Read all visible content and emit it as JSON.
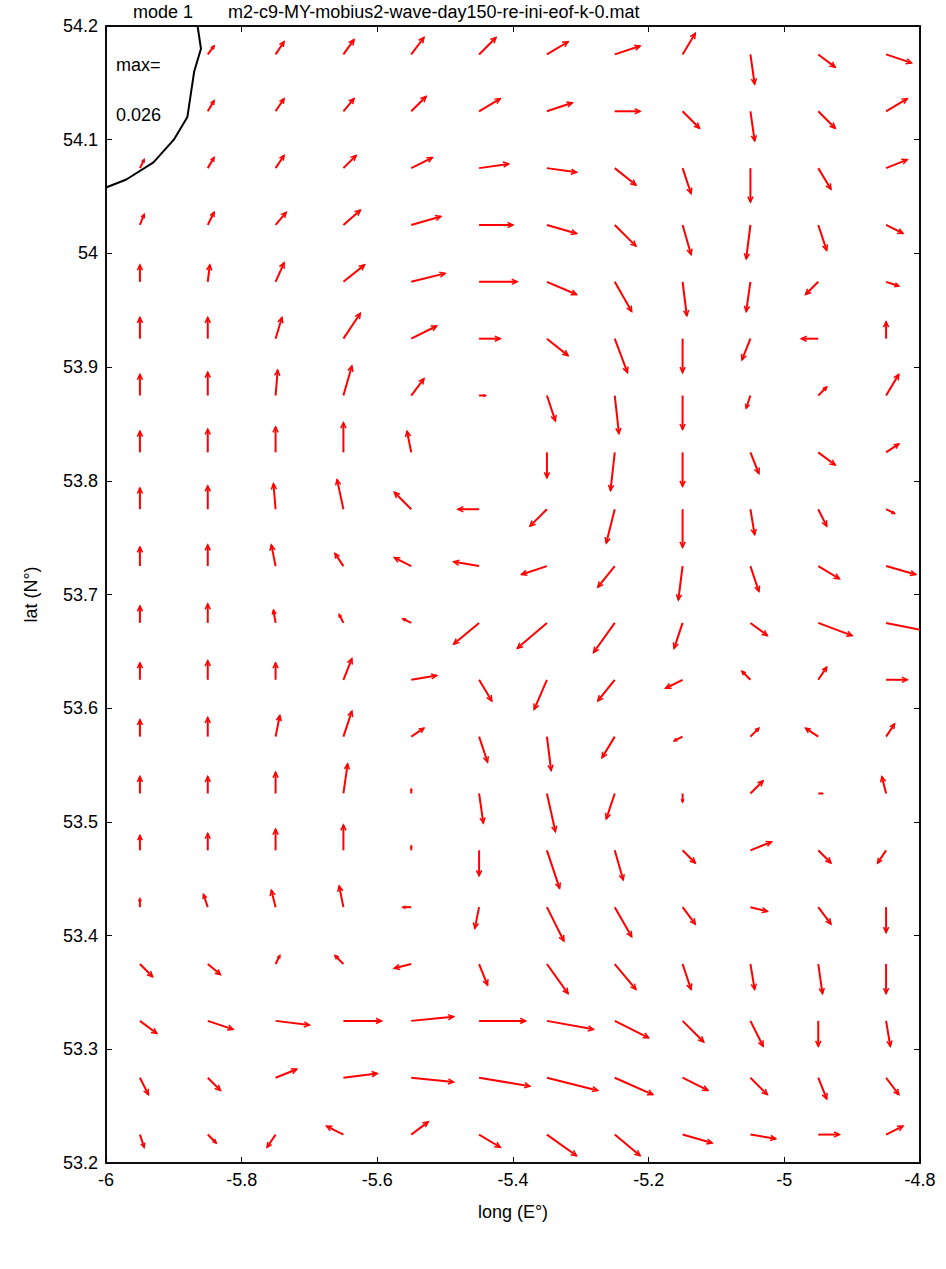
{
  "chart_data": {
    "type": "quiver",
    "title": "mode 1",
    "subtitle": "m2-c9-MY-mobius2-wave-day150-re-ini-eof-k-0.mat",
    "xlabel": "long (E°)",
    "ylabel": "lat (N°)",
    "xlim": [
      -6,
      -4.8
    ],
    "ylim": [
      53.2,
      54.2
    ],
    "xticks": [
      -6,
      -5.8,
      -5.6,
      -5.4,
      -5.2,
      -5,
      -4.8
    ],
    "yticks": [
      53.2,
      53.3,
      53.4,
      53.5,
      53.6,
      53.7,
      53.8,
      53.9,
      54,
      54.1,
      54.2
    ],
    "grid": false,
    "color": "#ff0000",
    "max_label": "max=",
    "max": 0.026,
    "coastline": [
      [
        -5.865,
        54.2
      ],
      [
        -5.86,
        54.18
      ],
      [
        -5.87,
        54.16
      ],
      [
        -5.875,
        54.14
      ],
      [
        -5.88,
        54.12
      ],
      [
        -5.9,
        54.1
      ],
      [
        -5.93,
        54.08
      ],
      [
        -5.97,
        54.065
      ],
      [
        -6,
        54.058
      ]
    ],
    "lon": [
      -5.95,
      -5.85,
      -5.75,
      -5.65,
      -5.55,
      -5.45,
      -5.35,
      -5.25,
      -5.15,
      -5.05,
      -4.95,
      -4.85
    ],
    "lat": [
      54.175,
      54.125,
      54.075,
      54.025,
      53.975,
      53.925,
      53.875,
      53.825,
      53.775,
      53.725,
      53.675,
      53.625,
      53.575,
      53.525,
      53.475,
      53.425,
      53.375,
      53.325,
      53.275,
      53.225
    ],
    "u": [
      [
        null,
        0.003,
        0.004,
        0.005,
        0.006,
        0.008,
        0.01,
        0.012,
        0.006,
        0.002,
        0.008,
        0.012
      ],
      [
        null,
        0.003,
        0.004,
        0.005,
        0.007,
        0.01,
        0.012,
        0.012,
        0.008,
        0.002,
        0.008,
        0.01
      ],
      [
        0.002,
        0.003,
        0.004,
        0.006,
        0.01,
        0.014,
        0.014,
        0.01,
        0.004,
        0,
        0.006,
        0.01
      ],
      [
        0.002,
        0.003,
        0.005,
        0.008,
        0.014,
        0.016,
        0.014,
        0.01,
        0.004,
        -0.002,
        0.004,
        0.008
      ],
      [
        0,
        0.001,
        0.004,
        0.01,
        0.016,
        0.018,
        0.014,
        0.008,
        0.002,
        -0.002,
        -0.006,
        0.006
      ],
      [
        0,
        0,
        0.003,
        0.008,
        0.012,
        0.01,
        0.01,
        0.006,
        0,
        -0.004,
        -0.008,
        0
      ],
      [
        0,
        0,
        0.001,
        0.004,
        0.006,
        0.003,
        0.004,
        0.002,
        0,
        -0.002,
        0.004,
        0.006
      ],
      [
        0,
        0,
        0,
        0,
        -0.002,
        0,
        0,
        -0.002,
        0,
        0.004,
        0.008,
        0.006
      ],
      [
        0,
        0,
        -0.001,
        -0.003,
        -0.008,
        -0.01,
        -0.008,
        -0.004,
        0,
        0.002,
        0.004,
        0.004
      ],
      [
        0,
        0,
        -0.002,
        -0.004,
        -0.008,
        -0.012,
        -0.012,
        -0.008,
        -0.002,
        0.004,
        0.01,
        0.014
      ],
      [
        0,
        0,
        -0.001,
        -0.002,
        -0.004,
        -0.012,
        -0.014,
        -0.01,
        -0.004,
        0.008,
        0.016,
        0.02
      ],
      [
        0,
        0,
        0,
        0.004,
        0.012,
        0.006,
        -0.006,
        -0.008,
        -0.008,
        -0.004,
        0.004,
        0.01
      ],
      [
        0,
        0,
        0.002,
        0.004,
        0.006,
        0.004,
        0.002,
        -0.006,
        -0.004,
        0.004,
        -0.006,
        0.004
      ],
      [
        0,
        0,
        0,
        0.002,
        0,
        0.002,
        0.004,
        -0.004,
        0,
        0.006,
        0.002,
        -0.002
      ],
      [
        0,
        0,
        0,
        0,
        0,
        0,
        0.006,
        0.004,
        0.006,
        0.01,
        0.006,
        -0.004
      ],
      [
        0,
        -0.002,
        -0.002,
        -0.002,
        -0.004,
        -0.002,
        0.008,
        0.008,
        0.006,
        0.008,
        0.006,
        0
      ],
      [
        0.006,
        0.006,
        0.002,
        -0.004,
        -0.008,
        0.004,
        0.01,
        0.01,
        0.004,
        0.002,
        0.002,
        0
      ],
      [
        0.008,
        0.012,
        0.016,
        0.018,
        0.02,
        0.022,
        0.022,
        0.016,
        0.01,
        0.006,
        0,
        0.002
      ],
      [
        0.004,
        0.006,
        0.01,
        0.016,
        0.02,
        0.024,
        0.024,
        0.018,
        0.012,
        0.008,
        0.004,
        0.006
      ],
      [
        0.002,
        0.004,
        -0.004,
        -0.008,
        0.008,
        0.01,
        0.014,
        0.012,
        0.014,
        0.012,
        0.01,
        0.008
      ]
    ],
    "v": [
      [
        null,
        0.004,
        0.006,
        0.007,
        0.008,
        0.008,
        0.006,
        0.004,
        0.01,
        -0.014,
        -0.006,
        -0.004
      ],
      [
        null,
        0.005,
        0.006,
        0.006,
        0.007,
        0.006,
        0.004,
        0,
        -0.008,
        -0.014,
        -0.008,
        0.006
      ],
      [
        0.004,
        0.005,
        0.006,
        0.006,
        0.005,
        0.002,
        -0.002,
        -0.008,
        -0.012,
        -0.016,
        -0.01,
        0.004
      ],
      [
        0.005,
        0.006,
        0.006,
        0.007,
        0.004,
        0,
        -0.004,
        -0.01,
        -0.014,
        -0.016,
        -0.012,
        -0.004
      ],
      [
        0.008,
        0.008,
        0.009,
        0.008,
        0.004,
        0,
        -0.006,
        -0.014,
        -0.016,
        -0.014,
        -0.006,
        -0.002
      ],
      [
        0.01,
        0.01,
        0.01,
        0.012,
        0.006,
        0,
        -0.008,
        -0.016,
        -0.016,
        -0.01,
        0,
        0.008
      ],
      [
        0.01,
        0.011,
        0.012,
        0.014,
        0.008,
        0,
        -0.012,
        -0.018,
        -0.016,
        -0.006,
        0.004,
        0.01
      ],
      [
        0.01,
        0.011,
        0.012,
        0.014,
        0.01,
        0,
        -0.012,
        -0.018,
        -0.016,
        -0.01,
        -0.006,
        0.004
      ],
      [
        0.01,
        0.011,
        0.012,
        0.014,
        0.008,
        0,
        -0.008,
        -0.016,
        -0.018,
        -0.012,
        -0.008,
        -0.002
      ],
      [
        0.009,
        0.01,
        0.01,
        0.006,
        0.004,
        0.002,
        -0.004,
        -0.01,
        -0.016,
        -0.012,
        -0.006,
        -0.004
      ],
      [
        0.008,
        0.009,
        0.006,
        0.004,
        0.002,
        -0.01,
        -0.012,
        -0.014,
        -0.012,
        -0.006,
        -0.006,
        -0.004
      ],
      [
        0.008,
        0.009,
        0.008,
        0.01,
        0.002,
        -0.01,
        -0.014,
        -0.01,
        -0.004,
        0.004,
        0.006,
        0
      ],
      [
        0.008,
        0.009,
        0.01,
        0.012,
        0.004,
        -0.012,
        -0.016,
        -0.01,
        -0.002,
        0.004,
        0.004,
        0.006
      ],
      [
        0.008,
        0.008,
        0.01,
        0.014,
        0.002,
        -0.014,
        -0.018,
        -0.012,
        -0.004,
        0.006,
        0,
        0.008
      ],
      [
        0.007,
        0.008,
        0.01,
        0.012,
        0.002,
        -0.012,
        -0.018,
        -0.014,
        -0.006,
        0.004,
        -0.006,
        -0.006
      ],
      [
        0.004,
        0.006,
        0.008,
        0.01,
        0,
        -0.01,
        -0.016,
        -0.014,
        -0.008,
        -0.002,
        -0.008,
        -0.012
      ],
      [
        -0.006,
        -0.005,
        0.004,
        0.004,
        -0.002,
        -0.01,
        -0.014,
        -0.012,
        -0.012,
        -0.012,
        -0.014,
        -0.014
      ],
      [
        -0.006,
        -0.004,
        -0.002,
        0,
        0.002,
        0,
        -0.004,
        -0.008,
        -0.01,
        -0.012,
        -0.012,
        -0.012
      ],
      [
        -0.008,
        -0.006,
        0.004,
        0.002,
        -0.002,
        -0.004,
        -0.006,
        -0.008,
        -0.006,
        -0.008,
        -0.01,
        -0.008
      ],
      [
        -0.006,
        -0.004,
        -0.006,
        0.004,
        0.006,
        -0.006,
        -0.01,
        -0.01,
        -0.004,
        -0.002,
        0,
        0.004
      ]
    ]
  }
}
